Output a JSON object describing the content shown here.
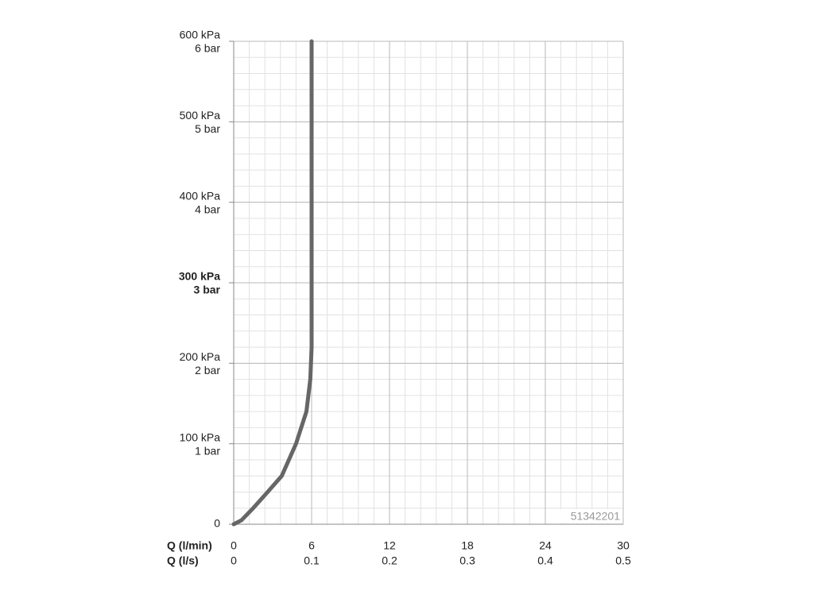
{
  "chart_data": {
    "type": "line",
    "xlabel": "Q (l/min)",
    "x2label": "Q (l/s)",
    "xlim": [
      0,
      30
    ],
    "xticks": [
      0,
      6,
      12,
      18,
      24,
      30
    ],
    "x2lim": [
      0,
      0.5
    ],
    "x2ticks": [
      0,
      0.1,
      0.2,
      0.3,
      0.4,
      0.5
    ],
    "ylim": [
      0,
      600
    ],
    "yticks": [
      0,
      {
        "value": 100,
        "label": "100 kPa"
      },
      {
        "value": 200,
        "label": "200 kPa"
      },
      {
        "value": 300,
        "label": "300 kPa"
      },
      {
        "value": 400,
        "label": "400 kPa"
      },
      {
        "value": 500,
        "label": "500 kPa"
      },
      {
        "value": 600,
        "label": "600 kPa"
      }
    ],
    "y2lim": [
      0,
      6
    ],
    "y2ticks": [
      {
        "value": 1,
        "label": "1 bar"
      },
      {
        "value": 2,
        "label": "2 bar"
      },
      {
        "value": 3,
        "label": "3 bar"
      },
      {
        "value": 4,
        "label": "4 bar"
      },
      {
        "value": 5,
        "label": "5 bar"
      },
      {
        "value": 6,
        "label": "6 bar"
      }
    ],
    "bold_ytick": 300,
    "grid": true,
    "annotation": "51342201",
    "series": [
      {
        "color": "#666666",
        "x": [
          0,
          0.6,
          1.5,
          2.5,
          3.7,
          4.8,
          5.6,
          5.9,
          6,
          6
        ],
        "values": [
          0,
          5,
          20,
          38,
          60,
          100,
          140,
          180,
          220,
          600
        ]
      }
    ]
  }
}
